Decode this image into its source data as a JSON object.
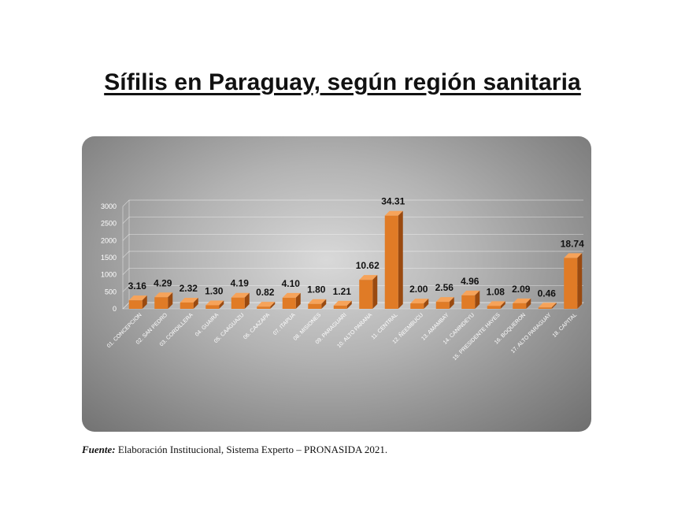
{
  "title": "Sífilis en Paraguay, según región sanitaria",
  "source": {
    "label": "Fuente:",
    "text": " Elaboración Institucional, Sistema Experto – PRONASIDA 2021."
  },
  "colors": {
    "bar_front": "#e07b26",
    "bar_side": "#9a4a10",
    "bar_top": "#f6a35a"
  },
  "chart_data": {
    "type": "bar",
    "title": "",
    "xlabel": "",
    "ylabel": "",
    "ylim": [
      0,
      3000
    ],
    "yticks": [
      0,
      500,
      1000,
      1500,
      2000,
      2500,
      3000
    ],
    "ytick_labels": [
      "0",
      "500",
      "1000",
      "1500",
      "2000",
      "2500",
      "3000"
    ],
    "grid": true,
    "categories": [
      "01. CONCEPCION",
      "02. SAN PEDRO",
      "03. CORDILLERA",
      "04. GUAIRA",
      "05. CAAGUAZU",
      "06. CAAZAPA",
      "07. ITAPUA",
      "08. MISIONES",
      "09. PARAGUARI",
      "10. ALTO PARANA",
      "11. CENTRAL",
      "12. ÑEEMBUCU",
      "13. AMAMBAY",
      "14. CANINDEYU",
      "15. PRESIDENTE HAYES",
      "16. BOQUERON",
      "17. ALTO PARAGUAY",
      "18. CAPITAL"
    ],
    "values": [
      250,
      340,
      185,
      105,
      330,
      65,
      325,
      145,
      95,
      850,
      2730,
      160,
      205,
      395,
      85,
      165,
      40,
      1490
    ],
    "data_labels": [
      "3.16",
      "4.29",
      "2.32",
      "1.30",
      "4.19",
      "0.82",
      "4.10",
      "1.80",
      "1.21",
      "10.62",
      "34.31",
      "2.00",
      "2.56",
      "4.96",
      "1.08",
      "2.09",
      "0.46",
      "18.74"
    ]
  }
}
